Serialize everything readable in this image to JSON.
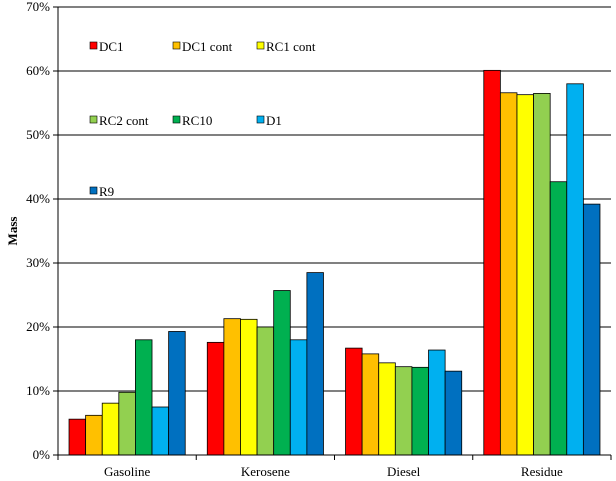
{
  "chart_data": {
    "type": "bar",
    "ylabel": "Mass",
    "ylim": [
      0,
      70
    ],
    "y_ticks": [
      "0%",
      "10%",
      "20%",
      "30%",
      "40%",
      "50%",
      "60%",
      "70%"
    ],
    "grid": true,
    "categories": [
      "Gasoline",
      "Kerosene",
      "Diesel",
      "Residue"
    ],
    "series": [
      {
        "name": "DC1",
        "color": "#ff0000",
        "values": [
          5.6,
          17.6,
          16.7,
          60.1
        ]
      },
      {
        "name": "DC1 cont",
        "color": "#ffc000",
        "values": [
          6.2,
          21.3,
          15.8,
          56.6
        ]
      },
      {
        "name": "RC1 cont",
        "color": "#ffff00",
        "values": [
          8.1,
          21.2,
          14.4,
          56.3
        ]
      },
      {
        "name": "RC2 cont",
        "color": "#92d050",
        "values": [
          9.8,
          20.0,
          13.8,
          56.5
        ]
      },
      {
        "name": "RC10",
        "color": "#00b050",
        "values": [
          18.0,
          25.7,
          13.7,
          42.7
        ]
      },
      {
        "name": "D1",
        "color": "#00b0f0",
        "values": [
          7.5,
          18.0,
          16.4,
          58.0
        ]
      },
      {
        "name": "R9",
        "color": "#0070c0",
        "values": [
          19.3,
          28.5,
          13.1,
          39.2
        ]
      }
    ]
  }
}
